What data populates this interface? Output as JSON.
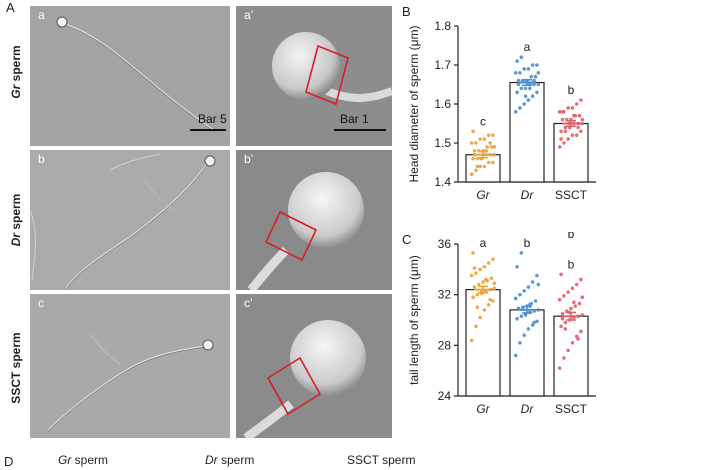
{
  "figure": {
    "panel_A": "A",
    "panel_B": "B",
    "panel_C": "C",
    "panel_D": "D"
  },
  "micrographs": {
    "rows": [
      {
        "italic": "Gr",
        "rest": " sperm",
        "left": "a",
        "right": "a’",
        "scale_left": "Bar 5",
        "scale_right": "Bar 1"
      },
      {
        "italic": "Dr",
        "rest": " sperm",
        "left": "b",
        "right": "b’"
      },
      {
        "italic": "",
        "rest": "SSCT sperm",
        "left": "c",
        "right": "c’"
      }
    ]
  },
  "bottom_labels": {
    "gr": {
      "italic": "Gr",
      "rest": " sperm"
    },
    "dr": {
      "italic": "Dr",
      "rest": " sperm"
    },
    "ssct": "SSCT sperm"
  },
  "chart_data": [
    {
      "type": "bar",
      "panel": "B",
      "categories": [
        "Gr",
        "Dr",
        "SSCT"
      ],
      "values": [
        1.47,
        1.655,
        1.55
      ],
      "errors": [
        0.008,
        0.007,
        0.007
      ],
      "letters": [
        "c",
        "a",
        "b"
      ],
      "colors": [
        "#e8a33a",
        "#4a8fd0",
        "#e0606a"
      ],
      "ylabel": "Head diameter of sperm (μm)",
      "ylim": [
        1.4,
        1.8
      ],
      "yticks": [
        "1.4",
        "1.5",
        "1.6",
        "1.7",
        "1.8"
      ],
      "points": [
        [
          1.42,
          1.43,
          1.44,
          1.44,
          1.45,
          1.45,
          1.46,
          1.46,
          1.46,
          1.47,
          1.47,
          1.47,
          1.48,
          1.48,
          1.48,
          1.49,
          1.49,
          1.5,
          1.5,
          1.51,
          1.51,
          1.52,
          1.52,
          1.53,
          1.44,
          1.46,
          1.48,
          1.5,
          1.49,
          1.47
        ],
        [
          1.58,
          1.59,
          1.6,
          1.61,
          1.62,
          1.63,
          1.63,
          1.64,
          1.64,
          1.65,
          1.65,
          1.65,
          1.66,
          1.66,
          1.66,
          1.67,
          1.67,
          1.68,
          1.68,
          1.69,
          1.69,
          1.7,
          1.7,
          1.71,
          1.72,
          1.62,
          1.64,
          1.66,
          1.68,
          1.65
        ],
        [
          1.49,
          1.5,
          1.51,
          1.52,
          1.52,
          1.53,
          1.53,
          1.54,
          1.54,
          1.55,
          1.55,
          1.55,
          1.56,
          1.56,
          1.56,
          1.57,
          1.57,
          1.58,
          1.58,
          1.59,
          1.59,
          1.6,
          1.61,
          1.51,
          1.53,
          1.55,
          1.57,
          1.54,
          1.56,
          1.58
        ]
      ]
    },
    {
      "type": "bar",
      "panel": "C",
      "categories": [
        "Gr",
        "Dr",
        "SSCT"
      ],
      "values": [
        32.4,
        30.8,
        30.3
      ],
      "errors": [
        0.25,
        0.25,
        0.3
      ],
      "letters": [
        "a",
        "b",
        "b"
      ],
      "extra_letter": "b",
      "colors": [
        "#e8a33a",
        "#4a8fd0",
        "#e0606a"
      ],
      "ylabel": "tail length of sperm (μm)",
      "ylim": [
        24,
        36
      ],
      "yticks": [
        "24",
        "28",
        "32",
        "36"
      ],
      "points": [
        [
          28.4,
          29.5,
          30.2,
          30.8,
          31.2,
          31.5,
          31.8,
          32,
          32.1,
          32.3,
          32.4,
          32.5,
          32.6,
          32.8,
          33,
          33.1,
          33.3,
          33.5,
          33.7,
          34,
          34.2,
          34.5,
          34.8,
          35.3,
          31,
          32.2,
          33.2,
          31.6,
          32.9,
          34.1
        ],
        [
          27.2,
          28.2,
          28.8,
          29.3,
          29.6,
          29.9,
          30.1,
          30.3,
          30.5,
          30.6,
          30.7,
          30.8,
          30.9,
          31,
          31.1,
          31.3,
          31.5,
          31.7,
          32,
          32.3,
          32.6,
          33,
          33.5,
          34.2,
          35.3,
          30.4,
          31.2,
          29.8,
          32.8,
          30.9
        ],
        [
          26.2,
          27,
          27.6,
          28.2,
          28.7,
          29.1,
          29.5,
          29.8,
          30,
          30.2,
          30.3,
          30.4,
          30.5,
          30.7,
          30.9,
          31.1,
          31.3,
          31.6,
          31.9,
          32.2,
          32.5,
          32.8,
          33.2,
          33.6,
          29.3,
          30.6,
          31.4,
          28.5,
          31.8,
          30.1
        ]
      ]
    }
  ]
}
